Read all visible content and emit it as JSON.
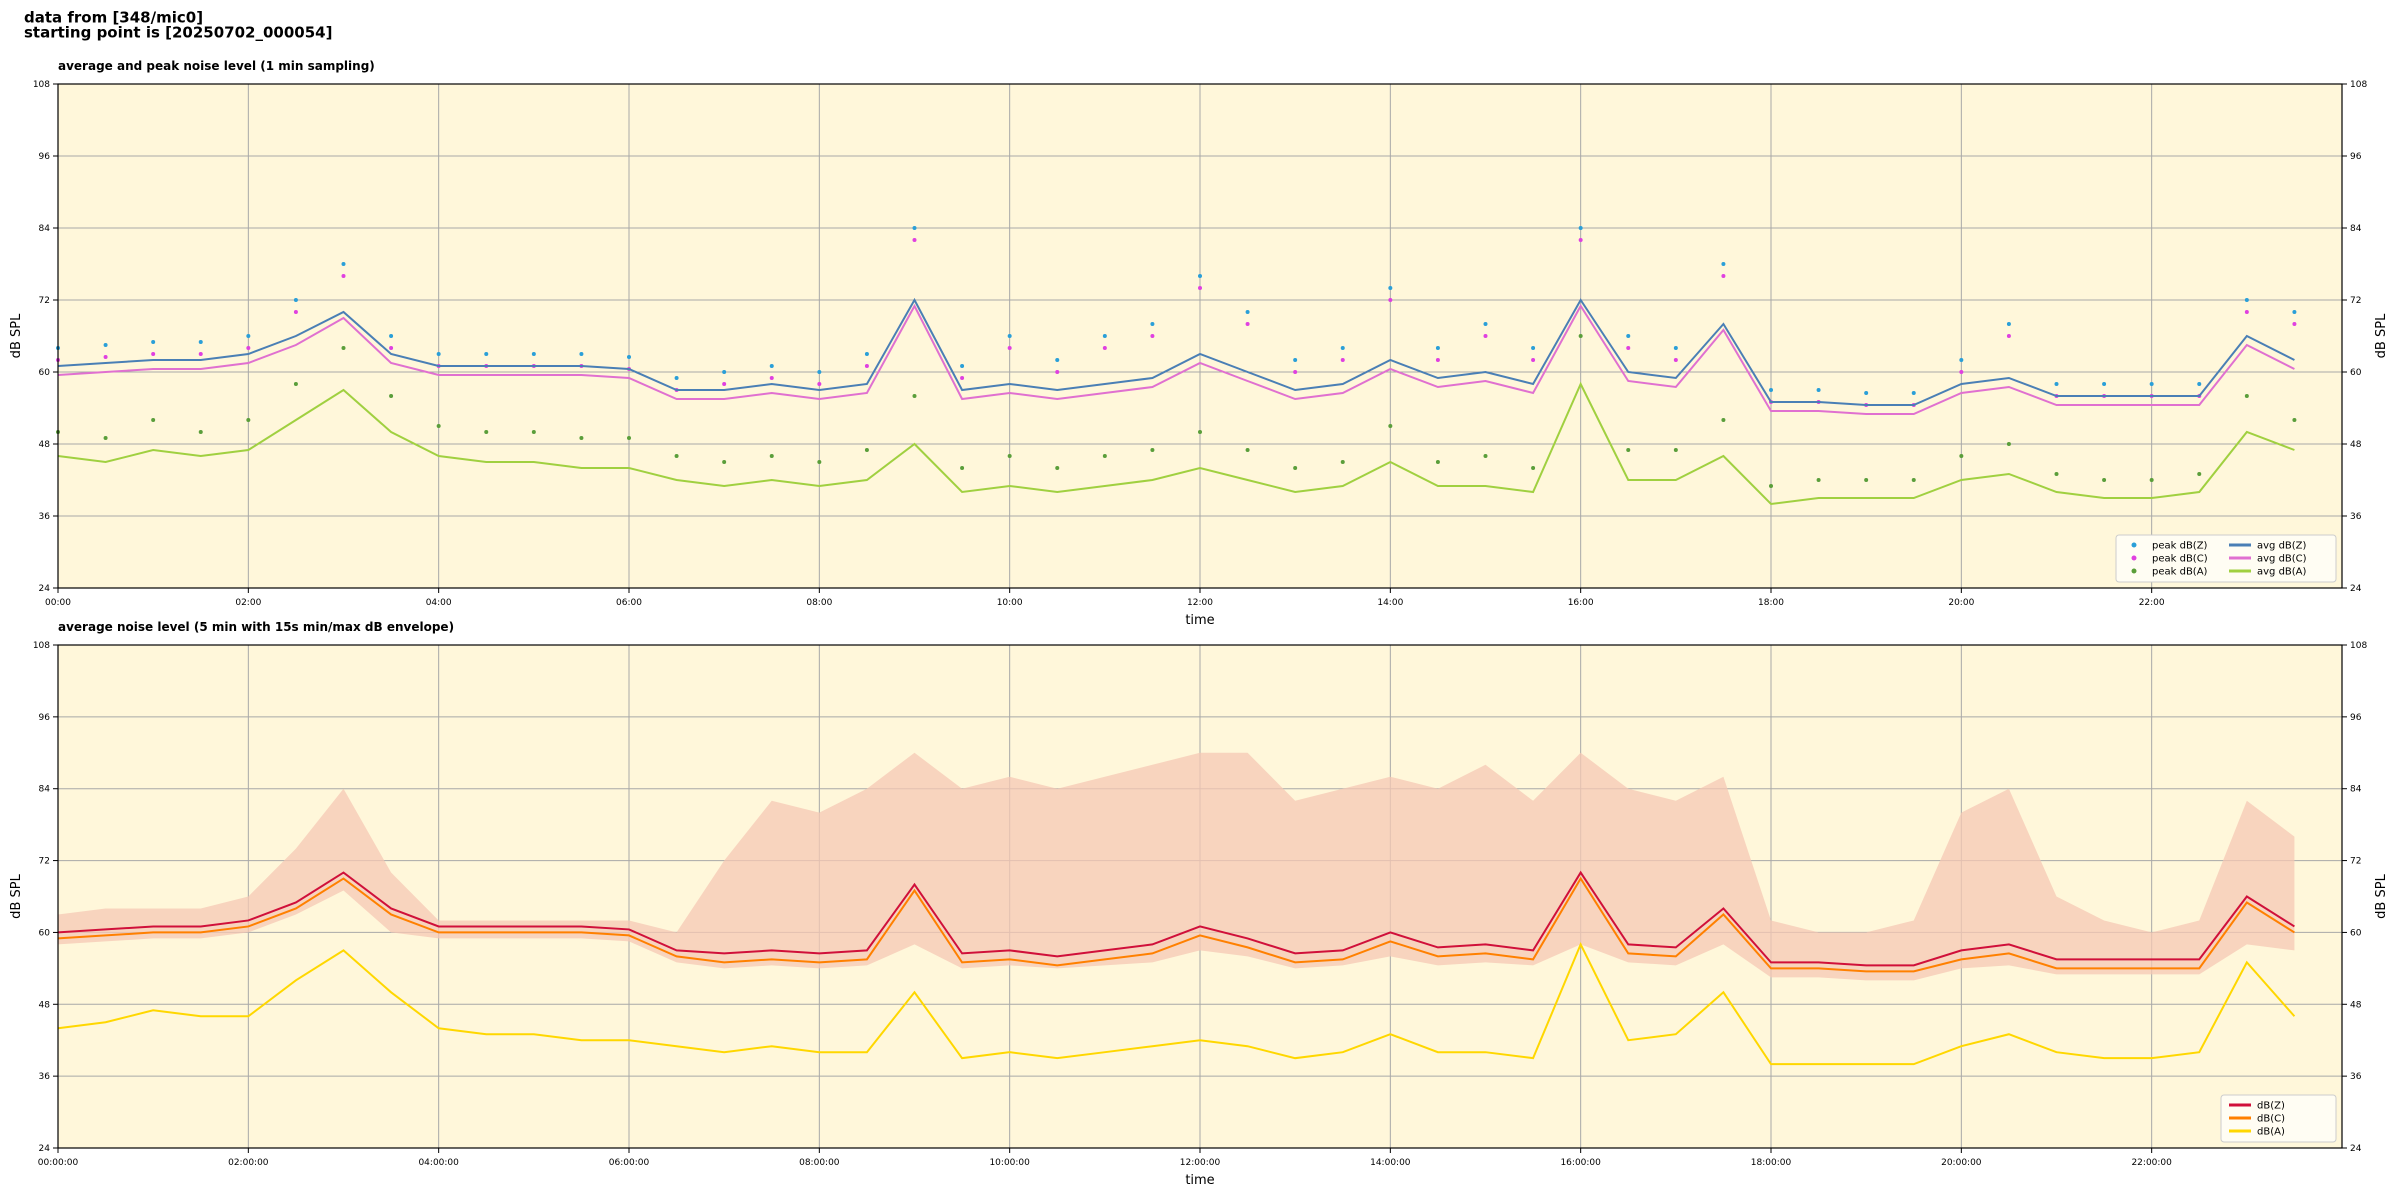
{
  "header": {
    "line1": "data from [348/mic0]",
    "line2": "starting point is [20250702_000054]"
  },
  "chart_data": [
    {
      "type": "line",
      "title": "average and peak noise level (1 min sampling)",
      "xlabel": "time",
      "ylabel": "dB SPL",
      "grid": true,
      "legend": "lower right",
      "legend_columns": 2,
      "x": [
        "00:00",
        "00:30",
        "01:00",
        "01:30",
        "02:00",
        "02:30",
        "03:00",
        "03:30",
        "04:00",
        "04:30",
        "05:00",
        "05:30",
        "06:00",
        "06:30",
        "07:00",
        "07:30",
        "08:00",
        "08:30",
        "09:00",
        "09:30",
        "10:00",
        "10:30",
        "11:00",
        "11:30",
        "12:00",
        "12:30",
        "13:00",
        "13:30",
        "14:00",
        "14:30",
        "15:00",
        "15:30",
        "16:00",
        "16:30",
        "17:00",
        "17:30",
        "18:00",
        "18:30",
        "19:00",
        "19:30",
        "20:00",
        "20:30",
        "21:00",
        "21:30",
        "22:00",
        "22:30",
        "23:00",
        "23:30"
      ],
      "xlim": [
        "00:00",
        "24:00"
      ],
      "xticks": [
        "00:00",
        "02:00",
        "04:00",
        "06:00",
        "08:00",
        "10:00",
        "12:00",
        "14:00",
        "16:00",
        "18:00",
        "20:00",
        "22:00"
      ],
      "ylim": [
        24,
        108
      ],
      "yticks": [
        24,
        36,
        48,
        60,
        72,
        84,
        96,
        108
      ],
      "series": [
        {
          "name": "peak dB(Z)",
          "kind": "scatter",
          "color": "#2a9fd8",
          "values": [
            64,
            64.5,
            65,
            65,
            66,
            72,
            78,
            66,
            63,
            63,
            63,
            63,
            62.5,
            59,
            60,
            61,
            60,
            63,
            84,
            61,
            66,
            62,
            66,
            68,
            76,
            70,
            62,
            64,
            74,
            64,
            68,
            64,
            84,
            66,
            64,
            78,
            57,
            57,
            56.5,
            56.5,
            62,
            68,
            58,
            58,
            58,
            58,
            72,
            70
          ]
        },
        {
          "name": "peak dB(C)",
          "kind": "scatter",
          "color": "#e040e0",
          "values": [
            62,
            62.5,
            63,
            63,
            64,
            70,
            76,
            64,
            61,
            61,
            61,
            61,
            60.5,
            57,
            58,
            59,
            58,
            61,
            82,
            59,
            64,
            60,
            64,
            66,
            74,
            68,
            60,
            62,
            72,
            62,
            66,
            62,
            82,
            64,
            62,
            76,
            55,
            55,
            54.5,
            54.5,
            60,
            66,
            56,
            56,
            56,
            56,
            70,
            68
          ]
        },
        {
          "name": "peak dB(A)",
          "kind": "scatter",
          "color": "#5a9e3a",
          "values": [
            50,
            49,
            52,
            50,
            52,
            58,
            64,
            56,
            51,
            50,
            50,
            49,
            49,
            46,
            45,
            46,
            45,
            47,
            56,
            44,
            46,
            44,
            46,
            47,
            50,
            47,
            44,
            45,
            51,
            45,
            46,
            44,
            66,
            47,
            47,
            52,
            41,
            42,
            42,
            42,
            46,
            48,
            43,
            42,
            42,
            43,
            56,
            52
          ]
        },
        {
          "name": "avg dB(Z)",
          "kind": "line",
          "color": "#4a7fb5",
          "values": [
            61,
            61.5,
            62,
            62,
            63,
            66,
            70,
            63,
            61,
            61,
            61,
            61,
            60.5,
            57,
            57,
            58,
            57,
            58,
            72,
            57,
            58,
            57,
            58,
            59,
            63,
            60,
            57,
            58,
            62,
            59,
            60,
            58,
            72,
            60,
            59,
            68,
            55,
            55,
            54.5,
            54.5,
            58,
            59,
            56,
            56,
            56,
            56,
            66,
            62
          ]
        },
        {
          "name": "avg dB(C)",
          "kind": "line",
          "color": "#e070d0",
          "values": [
            59.5,
            60,
            60.5,
            60.5,
            61.5,
            64.5,
            69,
            61.5,
            59.5,
            59.5,
            59.5,
            59.5,
            59,
            55.5,
            55.5,
            56.5,
            55.5,
            56.5,
            71,
            55.5,
            56.5,
            55.5,
            56.5,
            57.5,
            61.5,
            58.5,
            55.5,
            56.5,
            60.5,
            57.5,
            58.5,
            56.5,
            71,
            58.5,
            57.5,
            67,
            53.5,
            53.5,
            53,
            53,
            56.5,
            57.5,
            54.5,
            54.5,
            54.5,
            54.5,
            64.5,
            60.5
          ]
        },
        {
          "name": "avg dB(A)",
          "kind": "line",
          "color": "#a0d040",
          "values": [
            46,
            45,
            47,
            46,
            47,
            52,
            57,
            50,
            46,
            45,
            45,
            44,
            44,
            42,
            41,
            42,
            41,
            42,
            48,
            40,
            41,
            40,
            41,
            42,
            44,
            42,
            40,
            41,
            45,
            41,
            41,
            40,
            58,
            42,
            42,
            46,
            38,
            39,
            39,
            39,
            42,
            43,
            40,
            39,
            39,
            40,
            50,
            47
          ]
        }
      ]
    },
    {
      "type": "line",
      "title": "average noise level (5 min with 15s min/max dB envelope)",
      "xlabel": "time",
      "ylabel": "dB SPL",
      "grid": true,
      "legend": "lower right",
      "legend_columns": 1,
      "x": [
        "00:00",
        "00:30",
        "01:00",
        "01:30",
        "02:00",
        "02:30",
        "03:00",
        "03:30",
        "04:00",
        "04:30",
        "05:00",
        "05:30",
        "06:00",
        "06:30",
        "07:00",
        "07:30",
        "08:00",
        "08:30",
        "09:00",
        "09:30",
        "10:00",
        "10:30",
        "11:00",
        "11:30",
        "12:00",
        "12:30",
        "13:00",
        "13:30",
        "14:00",
        "14:30",
        "15:00",
        "15:30",
        "16:00",
        "16:30",
        "17:00",
        "17:30",
        "18:00",
        "18:30",
        "19:00",
        "19:30",
        "20:00",
        "20:30",
        "21:00",
        "21:30",
        "22:00",
        "22:30",
        "23:00",
        "23:30"
      ],
      "xlim": [
        "00:00",
        "24:00"
      ],
      "xticks": [
        "00:00:00",
        "02:00:00",
        "04:00:00",
        "06:00:00",
        "08:00:00",
        "10:00:00",
        "12:00:00",
        "14:00:00",
        "16:00:00",
        "18:00:00",
        "20:00:00",
        "22:00:00"
      ],
      "ylim": [
        24,
        108
      ],
      "yticks": [
        24,
        36,
        48,
        60,
        72,
        84,
        96,
        108
      ],
      "envelope": {
        "color": "#f6c8b4",
        "upper": [
          63,
          64,
          64,
          64,
          66,
          74,
          84,
          70,
          62,
          62,
          62,
          62,
          62,
          60,
          72,
          82,
          80,
          84,
          90,
          84,
          86,
          84,
          86,
          88,
          90,
          90,
          82,
          84,
          86,
          84,
          88,
          82,
          90,
          84,
          82,
          86,
          62,
          60,
          60,
          62,
          80,
          84,
          66,
          62,
          60,
          62,
          82,
          76
        ],
        "lower": [
          58,
          58.5,
          59,
          59,
          60,
          63,
          67,
          60,
          59,
          59,
          59,
          59,
          58.5,
          55,
          54,
          54.5,
          54,
          54.5,
          58,
          54,
          54.5,
          54,
          54.5,
          55,
          57,
          56,
          54,
          54.5,
          56,
          54.5,
          55,
          54.5,
          58,
          55,
          54.5,
          58,
          52.5,
          52.5,
          52,
          52,
          54,
          54.5,
          53,
          53,
          53,
          53,
          58,
          57
        ]
      },
      "series": [
        {
          "name": "dB(Z)",
          "kind": "line",
          "color": "#d0103a",
          "values": [
            60,
            60.5,
            61,
            61,
            62,
            65,
            70,
            64,
            61,
            61,
            61,
            61,
            60.5,
            57,
            56.5,
            57,
            56.5,
            57,
            68,
            56.5,
            57,
            56,
            57,
            58,
            61,
            59,
            56.5,
            57,
            60,
            57.5,
            58,
            57,
            70,
            58,
            57.5,
            64,
            55,
            55,
            54.5,
            54.5,
            57,
            58,
            55.5,
            55.5,
            55.5,
            55.5,
            66,
            61
          ]
        },
        {
          "name": "dB(C)",
          "kind": "line",
          "color": "#ff8000",
          "values": [
            59,
            59.5,
            60,
            60,
            61,
            64,
            69,
            63,
            60,
            60,
            60,
            60,
            59.5,
            56,
            55,
            55.5,
            55,
            55.5,
            67,
            55,
            55.5,
            54.5,
            55.5,
            56.5,
            59.5,
            57.5,
            55,
            55.5,
            58.5,
            56,
            56.5,
            55.5,
            69,
            56.5,
            56,
            63,
            54,
            54,
            53.5,
            53.5,
            55.5,
            56.5,
            54,
            54,
            54,
            54,
            65,
            60
          ]
        },
        {
          "name": "dB(A)",
          "kind": "line",
          "color": "#ffd700",
          "values": [
            44,
            45,
            47,
            46,
            46,
            52,
            57,
            50,
            44,
            43,
            43,
            42,
            42,
            41,
            40,
            41,
            40,
            40,
            50,
            39,
            40,
            39,
            40,
            41,
            42,
            41,
            39,
            40,
            43,
            40,
            40,
            39,
            58,
            42,
            43,
            50,
            38,
            38,
            38,
            38,
            41,
            43,
            40,
            39,
            39,
            40,
            55,
            46
          ]
        }
      ]
    }
  ]
}
